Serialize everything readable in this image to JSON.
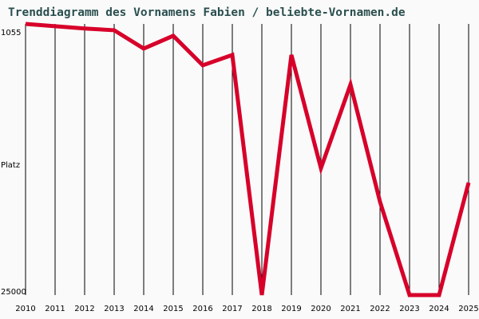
{
  "title": "Trenddiagramm des Vornamens Fabien / beliebte-Vornamen.de",
  "y_axis": {
    "top_label": "1055",
    "mid_label": "Platz",
    "bottom_label": "25000"
  },
  "colors": {
    "line": "#d7002a",
    "title": "#2b4f4f",
    "grid": "#000000",
    "background": "#fafafa"
  },
  "chart_data": {
    "type": "line",
    "title": "Trenddiagramm des Vornamens Fabien / beliebte-Vornamen.de",
    "xlabel": "",
    "ylabel": "Platz",
    "ylim": [
      1055,
      25000
    ],
    "y_inverted": true,
    "y_scale": "log",
    "grid": "vertical",
    "categories": [
      "2010",
      "2011",
      "2012",
      "2013",
      "2014",
      "2015",
      "2016",
      "2017",
      "2018",
      "2019",
      "2020",
      "2021",
      "2022",
      "2023",
      "2024",
      "2025"
    ],
    "series": [
      {
        "name": "Fabien",
        "values": [
          1055,
          1084,
          1114,
          1136,
          1407,
          1212,
          1710,
          1516,
          25000,
          1516,
          5690,
          2140,
          8410,
          25000,
          25000,
          6730
        ]
      }
    ]
  }
}
